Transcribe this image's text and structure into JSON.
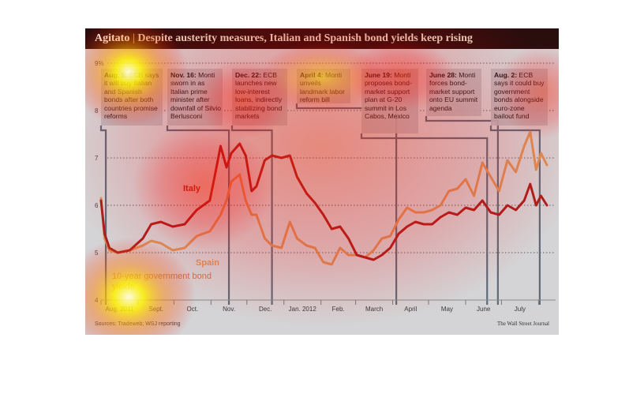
{
  "title": {
    "main": "Agitato",
    "separator": "|",
    "rest": "Despite austerity measures, Italian and Spanish bond yields keep rising"
  },
  "source": "Sources: Tradeweb; WSJ reporting",
  "credit": "The Wall Street Journal",
  "colors": {
    "background": "#d4d4d6",
    "title_bar": "#2a0d0d",
    "italy": "#a8201f",
    "spain": "#d9935a",
    "event_line": "#5d6a78"
  },
  "chart_data": {
    "type": "line",
    "title": "Despite austerity measures, Italian and Spanish bond yields keep rising",
    "subtitle": "10-year government bond yields",
    "xlabel": "",
    "ylabel": "",
    "x_range": [
      "2011-08-01",
      "2012-08-10"
    ],
    "ylim": [
      4,
      9
    ],
    "y_ticks": [
      "4",
      "5",
      "6",
      "7",
      "8",
      "9%"
    ],
    "x_ticks": [
      "Aug. 2011",
      "Sept.",
      "Oct.",
      "Nov.",
      "Dec.",
      "Jan. 2012",
      "Feb.",
      "March",
      "April",
      "May",
      "June",
      "July"
    ],
    "grid": "horizontal dotted",
    "series": [
      {
        "name": "Italy",
        "points": [
          [
            "2011-08-01",
            6.1
          ],
          [
            "2011-08-04",
            5.4
          ],
          [
            "2011-08-08",
            5.1
          ],
          [
            "2011-08-15",
            5.0
          ],
          [
            "2011-08-25",
            5.05
          ],
          [
            "2011-09-05",
            5.3
          ],
          [
            "2011-09-12",
            5.6
          ],
          [
            "2011-09-20",
            5.65
          ],
          [
            "2011-09-30",
            5.55
          ],
          [
            "2011-10-10",
            5.6
          ],
          [
            "2011-10-20",
            5.9
          ],
          [
            "2011-10-31",
            6.1
          ],
          [
            "2011-11-04",
            6.6
          ],
          [
            "2011-11-09",
            7.25
          ],
          [
            "2011-11-14",
            6.8
          ],
          [
            "2011-11-18",
            7.1
          ],
          [
            "2011-11-25",
            7.3
          ],
          [
            "2011-11-30",
            7.05
          ],
          [
            "2011-12-05",
            6.3
          ],
          [
            "2011-12-09",
            6.4
          ],
          [
            "2011-12-16",
            6.95
          ],
          [
            "2011-12-22",
            7.05
          ],
          [
            "2011-12-30",
            7.0
          ],
          [
            "2012-01-06",
            7.05
          ],
          [
            "2012-01-12",
            6.6
          ],
          [
            "2012-01-20",
            6.25
          ],
          [
            "2012-01-27",
            6.05
          ],
          [
            "2012-02-03",
            5.8
          ],
          [
            "2012-02-10",
            5.5
          ],
          [
            "2012-02-17",
            5.55
          ],
          [
            "2012-02-24",
            5.3
          ],
          [
            "2012-03-02",
            4.95
          ],
          [
            "2012-03-09",
            4.9
          ],
          [
            "2012-03-16",
            4.85
          ],
          [
            "2012-03-23",
            4.95
          ],
          [
            "2012-03-30",
            5.1
          ],
          [
            "2012-04-06",
            5.4
          ],
          [
            "2012-04-13",
            5.55
          ],
          [
            "2012-04-20",
            5.65
          ],
          [
            "2012-04-27",
            5.6
          ],
          [
            "2012-05-04",
            5.6
          ],
          [
            "2012-05-11",
            5.75
          ],
          [
            "2012-05-18",
            5.85
          ],
          [
            "2012-05-25",
            5.8
          ],
          [
            "2012-06-01",
            5.95
          ],
          [
            "2012-06-08",
            5.9
          ],
          [
            "2012-06-15",
            6.1
          ],
          [
            "2012-06-22",
            5.85
          ],
          [
            "2012-06-29",
            5.8
          ],
          [
            "2012-07-06",
            6.0
          ],
          [
            "2012-07-13",
            5.9
          ],
          [
            "2012-07-20",
            6.1
          ],
          [
            "2012-07-25",
            6.45
          ],
          [
            "2012-07-30",
            6.0
          ],
          [
            "2012-08-03",
            6.2
          ],
          [
            "2012-08-08",
            6.0
          ]
        ]
      },
      {
        "name": "Spain",
        "points": [
          [
            "2011-08-01",
            6.15
          ],
          [
            "2011-08-04",
            5.3
          ],
          [
            "2011-08-08",
            5.05
          ],
          [
            "2011-08-15",
            5.0
          ],
          [
            "2011-08-25",
            5.05
          ],
          [
            "2011-09-05",
            5.15
          ],
          [
            "2011-09-12",
            5.25
          ],
          [
            "2011-09-20",
            5.2
          ],
          [
            "2011-09-30",
            5.05
          ],
          [
            "2011-10-10",
            5.1
          ],
          [
            "2011-10-20",
            5.35
          ],
          [
            "2011-10-31",
            5.45
          ],
          [
            "2011-11-04",
            5.6
          ],
          [
            "2011-11-09",
            5.8
          ],
          [
            "2011-11-14",
            6.1
          ],
          [
            "2011-11-18",
            6.5
          ],
          [
            "2011-11-25",
            6.65
          ],
          [
            "2011-11-30",
            6.1
          ],
          [
            "2011-12-05",
            5.8
          ],
          [
            "2011-12-09",
            5.8
          ],
          [
            "2011-12-16",
            5.3
          ],
          [
            "2011-12-22",
            5.15
          ],
          [
            "2011-12-30",
            5.1
          ],
          [
            "2012-01-06",
            5.65
          ],
          [
            "2012-01-12",
            5.3
          ],
          [
            "2012-01-20",
            5.15
          ],
          [
            "2012-01-27",
            5.1
          ],
          [
            "2012-02-03",
            4.8
          ],
          [
            "2012-02-10",
            4.75
          ],
          [
            "2012-02-17",
            5.1
          ],
          [
            "2012-02-24",
            4.95
          ],
          [
            "2012-03-02",
            4.95
          ],
          [
            "2012-03-09",
            4.9
          ],
          [
            "2012-03-16",
            5.05
          ],
          [
            "2012-03-23",
            5.3
          ],
          [
            "2012-03-30",
            5.35
          ],
          [
            "2012-04-06",
            5.7
          ],
          [
            "2012-04-13",
            5.95
          ],
          [
            "2012-04-20",
            5.85
          ],
          [
            "2012-04-27",
            5.85
          ],
          [
            "2012-05-04",
            5.9
          ],
          [
            "2012-05-11",
            6.0
          ],
          [
            "2012-05-18",
            6.3
          ],
          [
            "2012-05-25",
            6.35
          ],
          [
            "2012-06-01",
            6.55
          ],
          [
            "2012-06-08",
            6.2
          ],
          [
            "2012-06-15",
            6.9
          ],
          [
            "2012-06-22",
            6.6
          ],
          [
            "2012-06-29",
            6.3
          ],
          [
            "2012-07-06",
            6.95
          ],
          [
            "2012-07-13",
            6.7
          ],
          [
            "2012-07-20",
            7.25
          ],
          [
            "2012-07-25",
            7.55
          ],
          [
            "2012-07-30",
            6.75
          ],
          [
            "2012-08-03",
            7.1
          ],
          [
            "2012-08-08",
            6.85
          ]
        ]
      }
    ],
    "annotations": [
      {
        "date": "2011-08-05",
        "label": "Aug. 5:",
        "text": "ECB says it will buy Italian and Spanish bonds after both countries promise reforms"
      },
      {
        "date": "2011-11-16",
        "label": "Nov. 16:",
        "text": "Monti sworn in as Italian prime minister after downfall of Silvio Berlusconi"
      },
      {
        "date": "2011-12-22",
        "label": "Dec. 22:",
        "text": "ECB launches new low-interest loans, indirectly stabilizing bond markets"
      },
      {
        "date": "2012-04-04",
        "label": "April 4:",
        "text": "Monti unveils landmark labor reform bill"
      },
      {
        "date": "2012-06-19",
        "label": "June 19:",
        "text": "Monti proposes bond-market support plan at G-20 summit in Los Cabos, Mexico"
      },
      {
        "date": "2012-06-28",
        "label": "June 28:",
        "text": "Monti forces bond-market support onto EU summit agenda"
      },
      {
        "date": "2012-08-02",
        "label": "Aug. 2:",
        "text": "ECB says it could buy government bonds alongside euro-zone bailout fund"
      }
    ]
  }
}
